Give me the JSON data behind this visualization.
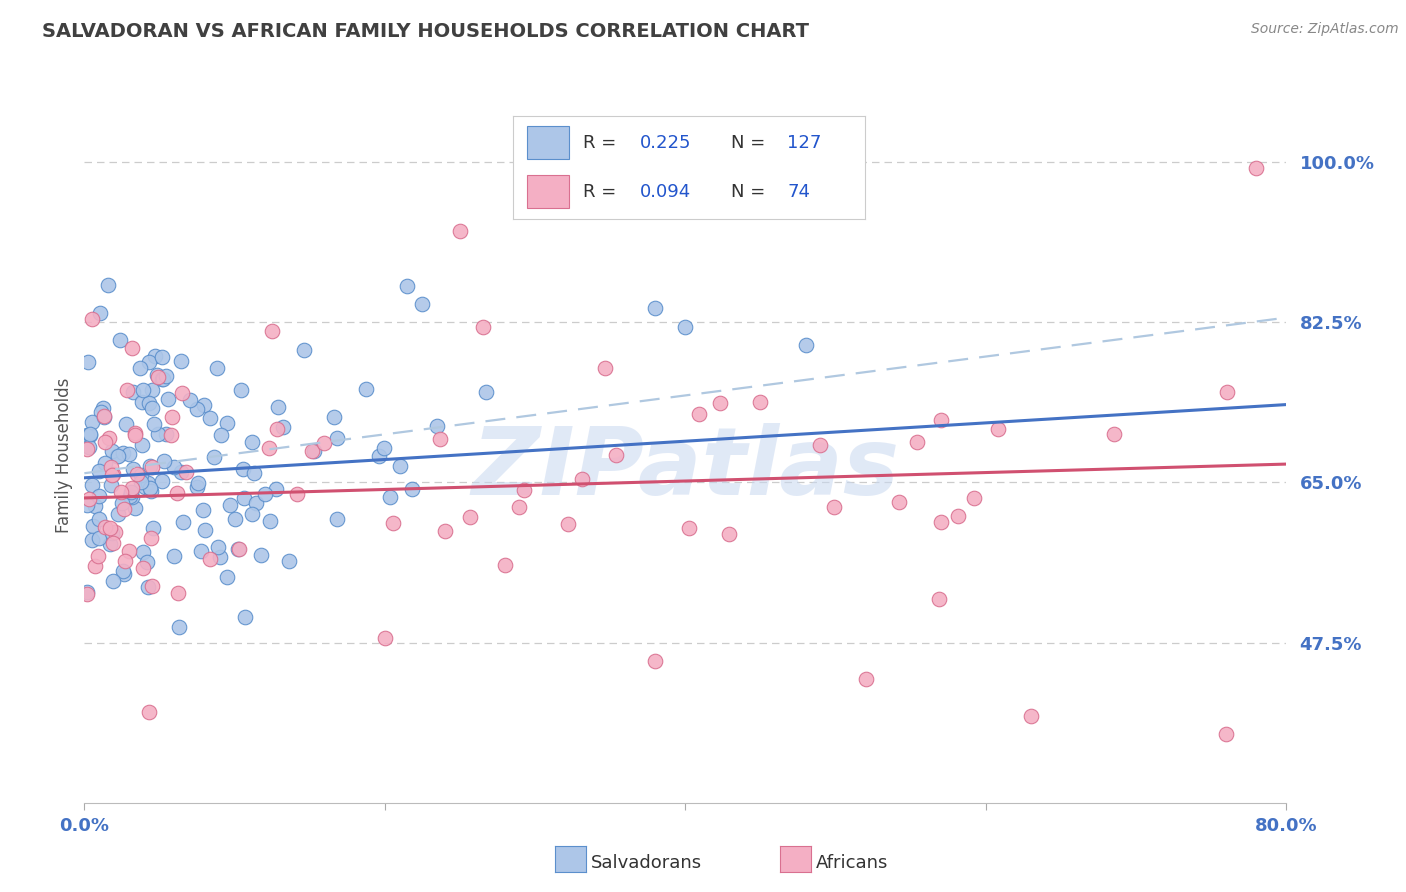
{
  "title": "SALVADORAN VS AFRICAN FAMILY HOUSEHOLDS CORRELATION CHART",
  "source": "Source: ZipAtlas.com",
  "ylabel": "Family Households",
  "legend_labels": [
    "Salvadorans",
    "Africans"
  ],
  "r_blue": "0.225",
  "n_blue": "127",
  "r_pink": "0.094",
  "n_pink": "74",
  "blue_fill": "#adc6e8",
  "pink_fill": "#f4afc4",
  "blue_edge": "#5b8fcc",
  "pink_edge": "#d97090",
  "blue_line": "#4472c4",
  "pink_line": "#d05070",
  "blue_dash": "#b0c8e0",
  "title_color": "#404040",
  "source_color": "#888888",
  "axis_tick_color": "#4472c4",
  "ylabel_color": "#555555",
  "watermark": "ZIPatlas",
  "watermark_color": "#c8d8f0",
  "legend_text_color": "#333333",
  "legend_val_color": "#2255cc",
  "xmin": 0.0,
  "xmax": 0.8,
  "ymin": 0.3,
  "ymax": 1.06,
  "yticks": [
    0.475,
    0.65,
    0.825,
    1.0
  ],
  "ytick_labels": [
    "47.5%",
    "65.0%",
    "82.5%",
    "100.0%"
  ],
  "grid_color": "#cccccc",
  "blue_trend": [
    0.0,
    0.8,
    0.655,
    0.735
  ],
  "blue_dash_trend": [
    0.0,
    0.8,
    0.66,
    0.83
  ],
  "pink_trend": [
    0.0,
    0.8,
    0.633,
    0.67
  ]
}
